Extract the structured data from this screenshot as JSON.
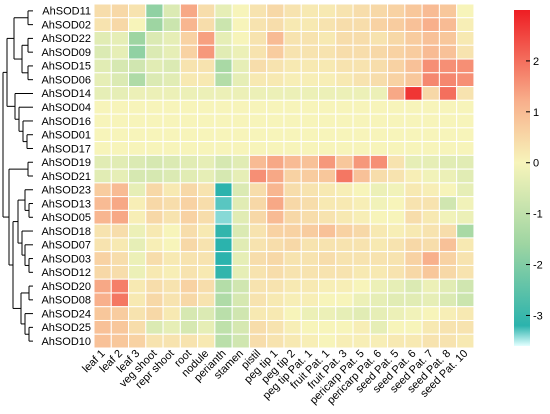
{
  "chart_data": {
    "type": "heatmap",
    "rows": [
      "AhSOD11",
      "AhSOD02",
      "AhSOD22",
      "AhSOD09",
      "AhSOD15",
      "AhSOD06",
      "AhSOD14",
      "AhSOD04",
      "AhSOD16",
      "AhSOD01",
      "AhSOD17",
      "AhSOD19",
      "AhSOD21",
      "AhSOD23",
      "AhSOD13",
      "AhSOD05",
      "AhSOD18",
      "AhSOD07",
      "AhSOD03",
      "AhSOD12",
      "AhSOD20",
      "AhSOD08",
      "AhSOD24",
      "AhSOD25",
      "AhSOD10"
    ],
    "columns": [
      "leaf 1",
      "leaf 2",
      "leaf 3",
      "veg shoot",
      "repr shoot",
      "root",
      "nodule",
      "perianth",
      "stamen",
      "pistil",
      "peg tip 1",
      "peg tip 2",
      "peg tip Pat. 1",
      "fruit Pat. 1",
      "fruit Pat. 3",
      "pericarp Pat. 5",
      "pericarp Pat. 6",
      "seed Pat. 5",
      "seed Pat. 6",
      "seed Pat. 7",
      "seed Pat. 8",
      "seed Pat. 10"
    ],
    "values": [
      [
        0.4,
        0.5,
        0.3,
        -1.8,
        -0.5,
        1.3,
        0.4,
        -0.3,
        0.0,
        0.3,
        0.5,
        0.3,
        0.2,
        0.2,
        0.3,
        0.4,
        0.5,
        0.6,
        0.8,
        1.0,
        0.8,
        0.0
      ],
      [
        0.3,
        0.5,
        0.0,
        -1.6,
        -0.8,
        1.1,
        0.4,
        -0.8,
        0.0,
        0.3,
        0.4,
        0.2,
        0.2,
        0.3,
        0.4,
        0.4,
        0.6,
        0.7,
        0.9,
        1.2,
        1.0,
        0.1
      ],
      [
        -0.4,
        -0.3,
        -1.6,
        -0.5,
        -0.3,
        0.6,
        1.4,
        -0.3,
        0.0,
        0.3,
        1.0,
        0.3,
        0.3,
        0.2,
        0.4,
        0.4,
        0.3,
        0.5,
        0.7,
        0.9,
        0.8,
        0.2
      ],
      [
        -0.5,
        -0.3,
        -1.8,
        -0.5,
        -0.3,
        0.6,
        1.5,
        -0.4,
        -0.2,
        0.3,
        0.7,
        0.3,
        0.3,
        0.3,
        0.4,
        0.4,
        0.5,
        0.6,
        0.7,
        1.0,
        0.9,
        0.3
      ],
      [
        -0.4,
        -0.6,
        -0.7,
        -0.4,
        -0.5,
        0.3,
        0.3,
        -1.4,
        -0.3,
        0.4,
        0.3,
        0.2,
        0.2,
        0.2,
        0.3,
        0.3,
        0.4,
        0.6,
        0.9,
        1.6,
        1.6,
        1.6
      ],
      [
        -0.3,
        -0.5,
        -1.3,
        -0.5,
        -0.4,
        0.2,
        0.2,
        -1.2,
        -0.3,
        0.2,
        0.2,
        0.1,
        0.1,
        0.1,
        0.2,
        0.3,
        0.4,
        0.6,
        0.8,
        1.7,
        1.7,
        1.6
      ],
      [
        -0.3,
        -0.3,
        -0.2,
        -0.2,
        -0.2,
        -0.2,
        -0.2,
        -0.2,
        -0.2,
        -0.2,
        -0.2,
        -0.2,
        -0.2,
        -0.2,
        -0.2,
        -0.2,
        -0.2,
        1.3,
        2.7,
        0.5,
        2.0,
        0.3
      ],
      [
        0.0,
        0.0,
        0.0,
        0.0,
        0.0,
        0.0,
        0.0,
        0.0,
        0.0,
        0.0,
        0.0,
        0.0,
        0.0,
        0.0,
        0.0,
        0.0,
        0.0,
        0.0,
        0.0,
        0.0,
        0.0,
        0.0
      ],
      [
        0.0,
        0.0,
        0.0,
        0.0,
        0.0,
        0.0,
        0.0,
        0.0,
        0.0,
        0.0,
        0.0,
        0.0,
        0.0,
        0.0,
        0.0,
        0.0,
        0.0,
        0.0,
        0.0,
        0.0,
        0.0,
        0.0
      ],
      [
        0.0,
        0.0,
        0.0,
        0.0,
        0.0,
        0.0,
        0.0,
        0.0,
        0.0,
        0.0,
        0.0,
        0.0,
        0.0,
        0.0,
        0.0,
        0.0,
        0.0,
        0.0,
        0.0,
        0.0,
        0.0,
        0.0
      ],
      [
        0.0,
        0.0,
        0.0,
        0.0,
        0.0,
        0.0,
        0.0,
        0.0,
        0.0,
        0.0,
        0.0,
        0.0,
        0.0,
        0.0,
        0.0,
        0.0,
        0.0,
        0.0,
        0.0,
        0.0,
        0.0,
        0.0
      ],
      [
        -0.4,
        -0.4,
        -0.5,
        -0.6,
        -0.5,
        -0.4,
        -0.3,
        -0.6,
        -0.4,
        1.0,
        1.3,
        1.0,
        0.9,
        1.5,
        0.8,
        1.5,
        1.6,
        0.3,
        -0.3,
        -0.3,
        -0.4,
        -0.4
      ],
      [
        -0.4,
        -0.3,
        -0.6,
        -0.6,
        -0.5,
        -0.4,
        -0.3,
        -0.6,
        -0.3,
        1.6,
        1.3,
        0.6,
        0.7,
        0.8,
        1.9,
        0.9,
        0.4,
        0.3,
        0.1,
        -0.1,
        -0.2,
        -0.4
      ],
      [
        0.7,
        1.0,
        -0.3,
        0.5,
        0.2,
        0.5,
        0.3,
        -3.2,
        -0.5,
        0.4,
        1.1,
        0.4,
        0.3,
        0.2,
        0.1,
        0.0,
        -0.2,
        -0.1,
        0.2,
        0.1,
        0.0,
        -0.3
      ],
      [
        1.0,
        1.3,
        0.1,
        0.5,
        0.4,
        0.6,
        0.4,
        -3.3,
        -0.4,
        0.5,
        1.3,
        0.5,
        0.4,
        0.2,
        0.2,
        0.1,
        -0.1,
        0.0,
        0.3,
        0.3,
        -0.7,
        -0.1
      ],
      [
        1.1,
        1.3,
        0.1,
        0.5,
        0.3,
        0.6,
        0.4,
        -3.4,
        -0.4,
        0.5,
        1.0,
        0.5,
        0.4,
        0.3,
        0.2,
        0.1,
        0.0,
        0.0,
        0.4,
        0.2,
        -0.1,
        -0.2
      ],
      [
        0.3,
        0.4,
        -0.2,
        0.2,
        0.0,
        0.4,
        0.2,
        -3.1,
        -0.5,
        0.3,
        0.6,
        0.6,
        0.7,
        0.9,
        0.6,
        0.5,
        0.2,
        0.1,
        0.2,
        0.3,
        0.4,
        -1.4
      ],
      [
        0.3,
        0.2,
        -0.3,
        0.1,
        0.0,
        0.5,
        0.3,
        -3.2,
        -0.4,
        0.3,
        0.4,
        0.5,
        0.3,
        0.3,
        0.3,
        0.3,
        0.2,
        0.3,
        0.5,
        0.4,
        0.9,
        0.2
      ],
      [
        0.6,
        0.4,
        -0.2,
        0.4,
        0.2,
        0.3,
        0.3,
        -3.2,
        -0.3,
        0.4,
        0.5,
        0.3,
        0.3,
        0.4,
        0.3,
        0.3,
        0.3,
        0.3,
        0.6,
        1.2,
        0.6,
        0.3
      ],
      [
        0.5,
        0.4,
        -0.2,
        0.2,
        0.1,
        0.3,
        0.2,
        -3.1,
        -0.3,
        0.3,
        0.4,
        0.3,
        0.3,
        0.3,
        0.3,
        0.2,
        0.2,
        0.3,
        0.5,
        0.8,
        0.5,
        0.3
      ],
      [
        1.3,
        1.8,
        0.2,
        0.4,
        0.3,
        0.6,
        0.4,
        -1.2,
        -0.7,
        0.3,
        0.3,
        0.2,
        0.2,
        0.1,
        0.1,
        0.0,
        -0.2,
        -0.3,
        -0.5,
        -0.2,
        -0.4,
        -0.7
      ],
      [
        1.2,
        1.9,
        0.2,
        0.5,
        0.3,
        0.5,
        0.3,
        -1.3,
        -0.6,
        0.3,
        0.2,
        0.1,
        0.1,
        0.0,
        0.0,
        -0.2,
        -0.3,
        -0.4,
        -0.4,
        -0.3,
        -0.5,
        -0.8
      ],
      [
        0.8,
        0.7,
        0.3,
        0.5,
        0.2,
        -0.6,
        -0.5,
        -1.1,
        -0.7,
        0.2,
        0.2,
        0.0,
        -0.2,
        -0.2,
        -0.3,
        -0.4,
        -0.3,
        -0.2,
        -0.1,
        0.0,
        0.1,
        0.2
      ],
      [
        0.9,
        0.8,
        0.4,
        -0.5,
        -0.3,
        -0.6,
        -0.3,
        -1.0,
        -0.6,
        0.4,
        0.3,
        0.1,
        0.0,
        0.0,
        0.0,
        0.1,
        -0.3,
        0.0,
        0.0,
        0.2,
        0.3,
        0.3
      ],
      [
        0.9,
        0.8,
        0.6,
        0.3,
        0.3,
        0.3,
        0.2,
        -1.1,
        -0.7,
        0.4,
        0.3,
        0.2,
        0.1,
        0.0,
        0.1,
        0.1,
        0.1,
        0.2,
        0.2,
        0.3,
        0.3,
        0.2
      ]
    ],
    "color_scale": {
      "min": -3.6,
      "max": 3.0,
      "stops": [
        {
          "v": -3.6,
          "c": "#e3ffff"
        },
        {
          "v": -3.2,
          "c": "#2bb3ad"
        },
        {
          "v": -1.6,
          "c": "#9ed5a2"
        },
        {
          "v": 0.0,
          "c": "#f7f4ba"
        },
        {
          "v": 1.2,
          "c": "#f8b08c"
        },
        {
          "v": 3.0,
          "c": "#ee1d23"
        }
      ],
      "ticks": [
        2,
        1,
        0,
        -1,
        -2,
        -3
      ]
    },
    "dendrogram": "rows",
    "grid_color": "#ffffff"
  }
}
